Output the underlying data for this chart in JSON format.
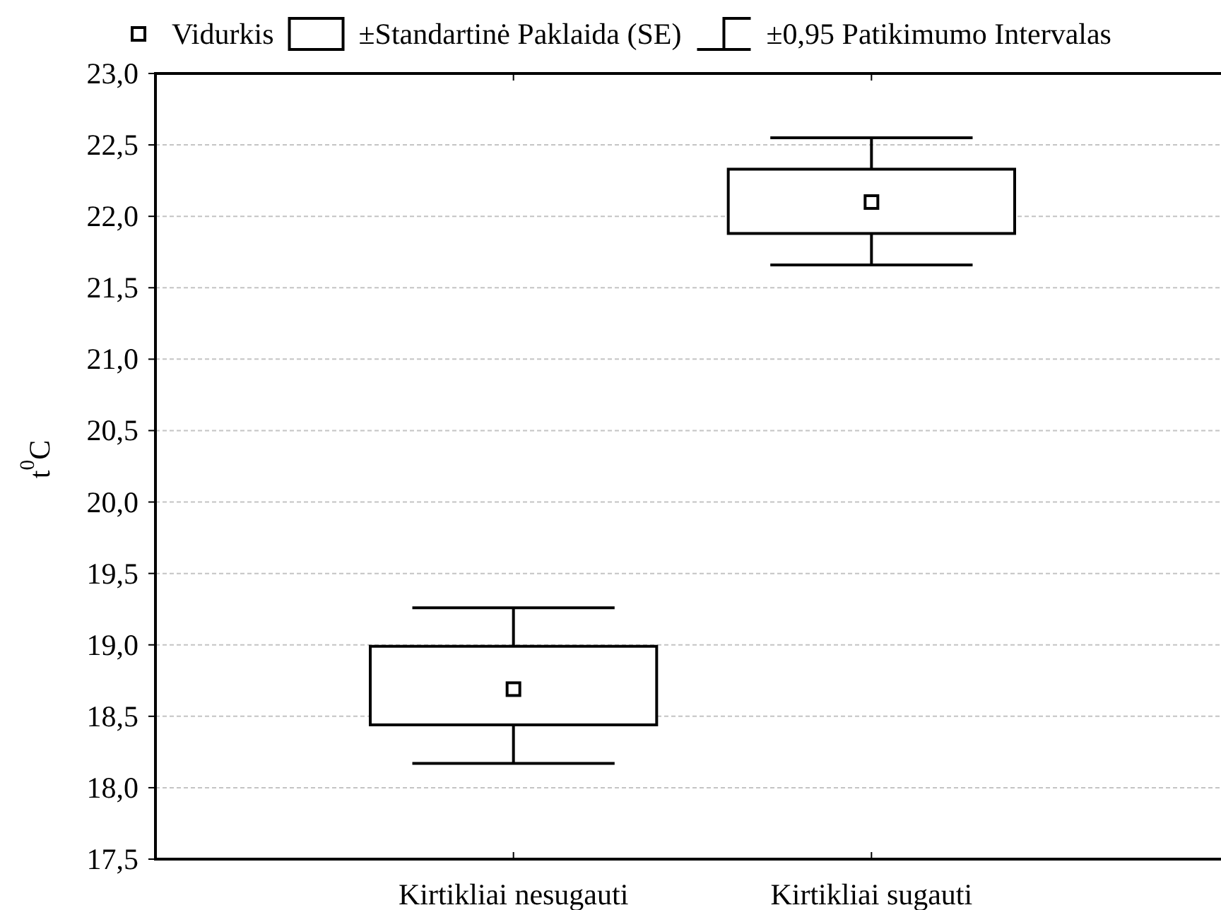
{
  "chart_data": {
    "type": "box",
    "categories": [
      "Kirtikliai nesugauti",
      "Kirtikliai sugauti"
    ],
    "ylabel": "t$^{0}$C",
    "ylim": [
      17.5,
      23
    ],
    "yticks": [
      {
        "value": 17.5,
        "label": "17,5"
      },
      {
        "value": 18,
        "label": "18,0"
      },
      {
        "value": 18.5,
        "label": "18,5"
      },
      {
        "value": 19,
        "label": "19,0"
      },
      {
        "value": 19.5,
        "label": "19,5"
      },
      {
        "value": 20,
        "label": "20,0"
      },
      {
        "value": 20.5,
        "label": "20,5"
      },
      {
        "value": 21,
        "label": "21,0"
      },
      {
        "value": 21.5,
        "label": "21,5"
      },
      {
        "value": 22,
        "label": "22,0"
      },
      {
        "value": 22.5,
        "label": "22,5"
      },
      {
        "value": 23,
        "label": "23,0"
      }
    ],
    "grid": "y",
    "legend": "top",
    "series": [
      {
        "name": "Vidurkis",
        "type": "scatter",
        "marker": "square",
        "color": "#000000",
        "x": [
          "Kirtikliai nesugauti",
          "Kirtikliai sugauti"
        ],
        "values": [
          18.69,
          22.1
        ]
      },
      {
        "name": "±Standartinė Paklaida (SE)",
        "color": "#000000",
        "boxes": [
          {
            "low": 18.17,
            "q1": 18.44,
            "q3": 18.99,
            "high": 19.26
          },
          {
            "low": 21.66,
            "q1": 21.88,
            "q3": 22.33,
            "high": 22.55
          }
        ]
      }
    ],
    "annotations": [
      "±0,95 Patikimumo Intervalas"
    ]
  }
}
